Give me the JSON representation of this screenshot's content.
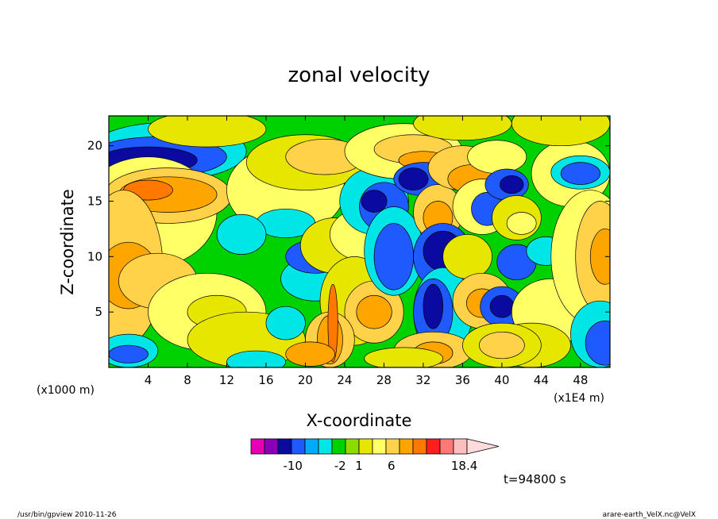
{
  "chart_data": {
    "type": "heatmap",
    "title": "zonal velocity",
    "xlabel": "X-coordinate",
    "ylabel": "Z-coordinate",
    "x_unit_label": "(x1E4 m)",
    "y_unit_label": "(x1000 m)",
    "xlim": [
      0,
      51
    ],
    "ylim": [
      0,
      22.7
    ],
    "x_ticks": [
      4,
      8,
      12,
      16,
      20,
      24,
      28,
      32,
      36,
      40,
      44,
      48
    ],
    "y_ticks": [
      5,
      10,
      15,
      20
    ],
    "time_label": "t=94800 s",
    "colorbar": {
      "tick_labels": [
        {
          "value": -10,
          "label": "-10"
        },
        {
          "value": -2,
          "label": "-2"
        },
        {
          "value": 1,
          "label": "1"
        },
        {
          "value": 6,
          "label": "6"
        },
        {
          "value": 18.4,
          "label": "18.4"
        }
      ],
      "colors": [
        "#e600b4",
        "#8a00b8",
        "#0a0aa0",
        "#1e5aff",
        "#00aaff",
        "#00e6e6",
        "#00d200",
        "#8cdc00",
        "#e6e600",
        "#ffff66",
        "#ffd24a",
        "#ffa500",
        "#ff7800",
        "#ff1e1e",
        "#ff7878",
        "#ffbebe"
      ],
      "extend_color": "#ffdcdc"
    }
  },
  "footer": {
    "left": "/usr/bin/gpview   2010-11-26",
    "right": "arare-earth_VelX.nc@VelX"
  }
}
